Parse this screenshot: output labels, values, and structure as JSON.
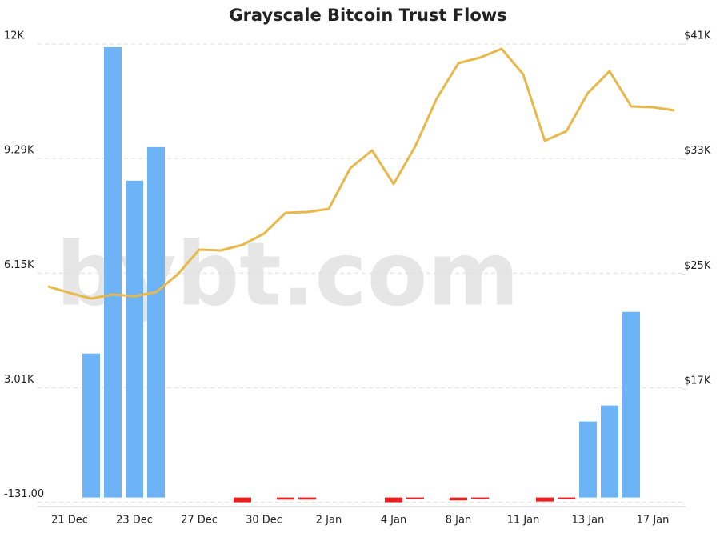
{
  "chart_data": {
    "type": "bar",
    "title": "Grayscale Bitcoin Trust Flows",
    "watermark": "bybt.com",
    "categories": [
      null,
      "21 Dec",
      null,
      null,
      "23 Dec",
      null,
      null,
      "27 Dec",
      null,
      null,
      "30 Dec",
      null,
      null,
      "2 Jan",
      null,
      null,
      "4 Jan",
      null,
      null,
      "8 Jan",
      null,
      null,
      "11 Jan",
      null,
      null,
      "13 Jan",
      null,
      null,
      "17 Jan",
      null
    ],
    "ylim": [
      -250,
      12429
    ],
    "yticks": [
      {
        "value": -131,
        "label": "-131.00"
      },
      {
        "value": 3009,
        "label": "3.01K"
      },
      {
        "value": 6149,
        "label": "6.15K"
      },
      {
        "value": 9289,
        "label": "9.29K"
      },
      {
        "value": 12429,
        "label": "12K"
      }
    ],
    "y2lim": [
      8833,
      41000
    ],
    "y2ticks": [
      {
        "value": 17000,
        "label": "$17K"
      },
      {
        "value": 25000,
        "label": "$25K"
      },
      {
        "value": 33000,
        "label": "$33K"
      },
      {
        "value": 41000,
        "label": "$41K"
      }
    ],
    "grid": true,
    "series": [
      {
        "type": "bar",
        "color": "#6cb4f5",
        "negative_color": "#ee1c1c",
        "values": [
          null,
          null,
          3946,
          12342,
          8681,
          9602,
          null,
          null,
          null,
          -130,
          null,
          -60,
          -60,
          null,
          null,
          null,
          -130,
          -50,
          null,
          -80,
          -50,
          null,
          null,
          -110,
          -50,
          2083,
          2521,
          5086,
          null,
          null
        ]
      },
      {
        "type": "line",
        "axis": "y2",
        "color": "#e8b84a",
        "values": [
          24138,
          23693,
          23303,
          23581,
          23470,
          23748,
          24972,
          26698,
          26642,
          27032,
          27811,
          29258,
          29314,
          29536,
          32374,
          33599,
          31261,
          33877,
          37216,
          39664,
          40054,
          40666,
          38885,
          34266,
          34934,
          37605,
          39108,
          36659,
          36604,
          36381
        ]
      }
    ]
  }
}
